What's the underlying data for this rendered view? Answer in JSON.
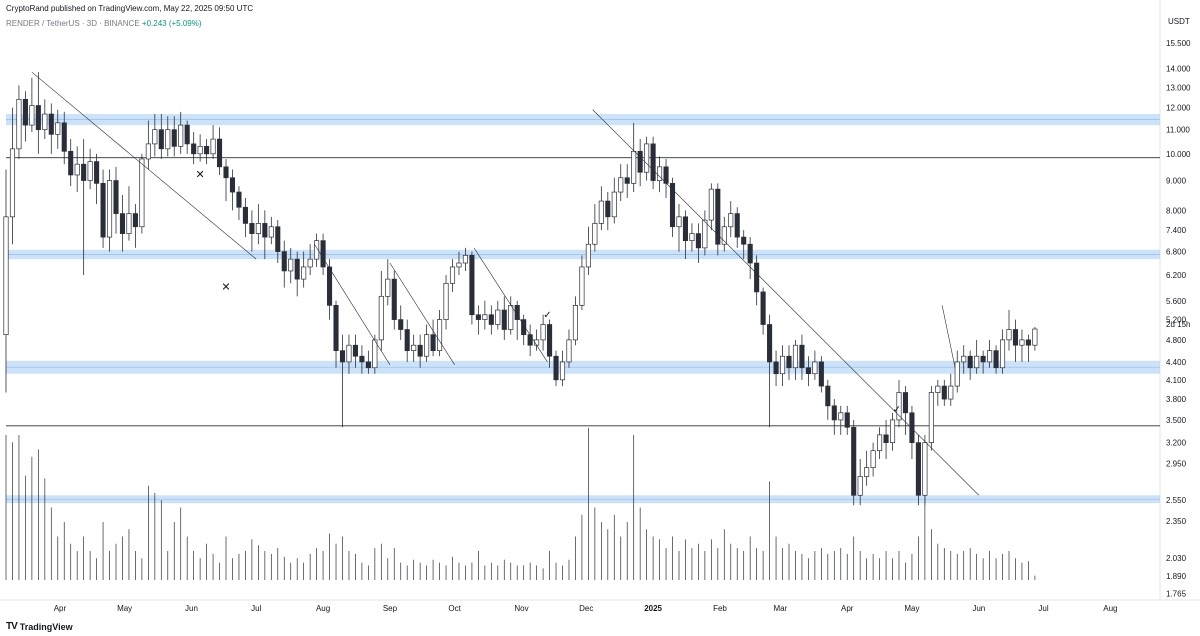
{
  "header": {
    "publisher": "CryptoRand published on TradingView.com, May 22, 2025 09:50 UTC",
    "symbol": "RENDER / TetherUS · 3D · BINANCE",
    "change": "+0.243 (+5.09%)"
  },
  "footer": {
    "brand": "TradingView",
    "logo_icon": "tradingview-logo-icon"
  },
  "colors": {
    "up": "#ffffff",
    "down": "#2a2e39",
    "zone": "#bbd8f5",
    "zone_line": "#9cc3ee",
    "line": "#2a2e39"
  },
  "chart_data": {
    "type": "candlestick",
    "scale": "log",
    "unit": "USDT",
    "countdown": "2d 15h",
    "last_price": "5.010",
    "y_ticks": [
      "15.500",
      "14.000",
      "13.000",
      "12.000",
      "11.000",
      "10.000",
      "9.000",
      "8.000",
      "7.400",
      "6.800",
      "6.200",
      "5.600",
      "5.200",
      "4.800",
      "4.400",
      "4.100",
      "3.800",
      "3.500",
      "3.200",
      "2.950",
      "2.550",
      "2.350",
      "2.030",
      "1.890",
      "1.765"
    ],
    "ylim": [
      1.72,
      16.3
    ],
    "x_labels": [
      {
        "label": "Apr",
        "date": "2024-04-01"
      },
      {
        "label": "May",
        "date": "2024-05-01"
      },
      {
        "label": "Jun",
        "date": "2024-06-01"
      },
      {
        "label": "Jul",
        "date": "2024-07-01"
      },
      {
        "label": "Aug",
        "date": "2024-08-01"
      },
      {
        "label": "Sep",
        "date": "2024-09-01"
      },
      {
        "label": "Oct",
        "date": "2024-10-01"
      },
      {
        "label": "Nov",
        "date": "2024-11-01"
      },
      {
        "label": "Dec",
        "date": "2024-12-01"
      },
      {
        "label": "2025",
        "date": "2025-01-01",
        "bold": true
      },
      {
        "label": "Feb",
        "date": "2025-02-01"
      },
      {
        "label": "Mar",
        "date": "2025-03-01"
      },
      {
        "label": "Apr",
        "date": "2025-04-01"
      },
      {
        "label": "May",
        "date": "2025-05-01"
      },
      {
        "label": "Jun",
        "date": "2025-06-01"
      },
      {
        "label": "Jul",
        "date": "2025-07-01"
      },
      {
        "label": "Aug",
        "date": "2025-08-01"
      }
    ],
    "xlim": [
      "2024-03-07",
      "2025-08-24"
    ],
    "zones": [
      {
        "low": 11.2,
        "high": 11.7
      },
      {
        "low": 6.6,
        "high": 6.85
      },
      {
        "low": 4.2,
        "high": 4.42
      },
      {
        "low": 2.52,
        "high": 2.6
      }
    ],
    "levels": [
      9.85,
      3.42
    ],
    "trendlines": [
      {
        "x1": "2024-03-19",
        "y1": 13.8,
        "x2": "2024-07-01",
        "y2": 6.6
      },
      {
        "x1": "2024-07-28",
        "y1": 7.0,
        "x2": "2024-09-01",
        "y2": 4.35
      },
      {
        "x1": "2024-09-01",
        "y1": 6.5,
        "x2": "2024-10-01",
        "y2": 4.35
      },
      {
        "x1": "2024-10-10",
        "y1": 6.9,
        "x2": "2024-11-13",
        "y2": 4.4
      },
      {
        "x1": "2024-12-04",
        "y1": 11.9,
        "x2": "2025-06-01",
        "y2": 2.6
      },
      {
        "x1": "2025-05-15",
        "y1": 5.5,
        "x2": "2025-05-21",
        "y2": 4.3
      }
    ],
    "markers": [
      {
        "date": "2024-06-05",
        "price": 9.2,
        "symbol": "✕",
        "name": "cross-marker-1"
      },
      {
        "date": "2024-06-17",
        "price": 5.9,
        "symbol": "✕",
        "name": "cross-marker-2"
      },
      {
        "date": "2024-11-13",
        "price": 5.3,
        "symbol": "✓",
        "name": "check-marker-1"
      },
      {
        "date": "2025-04-24",
        "price": 3.65,
        "symbol": "✓",
        "name": "check-marker-2"
      }
    ],
    "series_start": "2024-03-07",
    "bar_days": 3,
    "candles": [
      [
        4.9,
        7.8,
        9.4,
        3.9
      ],
      [
        7.8,
        10.2,
        12.0,
        7.0
      ],
      [
        10.2,
        12.4,
        13.1,
        9.8
      ],
      [
        12.4,
        11.2,
        12.8,
        10.5
      ],
      [
        11.2,
        12.1,
        13.5,
        10.9
      ],
      [
        12.1,
        11.0,
        13.8,
        10.0
      ],
      [
        11.0,
        11.7,
        12.4,
        10.6
      ],
      [
        11.7,
        10.8,
        12.2,
        10.0
      ],
      [
        10.8,
        11.3,
        11.9,
        10.2
      ],
      [
        11.3,
        10.1,
        11.8,
        9.6
      ],
      [
        10.1,
        9.2,
        10.6,
        8.8
      ],
      [
        9.2,
        9.6,
        10.3,
        8.6
      ],
      [
        9.6,
        9.0,
        10.6,
        6.2
      ],
      [
        9.0,
        9.7,
        10.2,
        8.7
      ],
      [
        9.7,
        8.9,
        10.0,
        8.2
      ],
      [
        8.9,
        7.2,
        9.4,
        6.9
      ],
      [
        7.2,
        9.0,
        9.4,
        6.8
      ],
      [
        9.0,
        7.9,
        9.5,
        7.3
      ],
      [
        7.9,
        7.3,
        8.5,
        6.8
      ],
      [
        7.3,
        7.9,
        8.8,
        7.1
      ],
      [
        7.9,
        7.5,
        8.2,
        6.9
      ],
      [
        7.5,
        9.8,
        10.0,
        7.3
      ],
      [
        9.8,
        10.4,
        11.4,
        9.4
      ],
      [
        10.4,
        11.0,
        11.7,
        9.9
      ],
      [
        11.0,
        10.2,
        11.7,
        9.8
      ],
      [
        10.2,
        11.0,
        11.6,
        9.9
      ],
      [
        11.0,
        10.3,
        11.6,
        9.9
      ],
      [
        10.3,
        11.2,
        11.8,
        10.0
      ],
      [
        11.2,
        10.4,
        11.4,
        10.0
      ],
      [
        10.4,
        10.0,
        10.9,
        9.6
      ],
      [
        10.0,
        10.3,
        10.8,
        9.7
      ],
      [
        10.3,
        10.0,
        10.6,
        9.6
      ],
      [
        10.0,
        10.6,
        11.2,
        9.8
      ],
      [
        10.6,
        9.5,
        11.1,
        9.2
      ],
      [
        9.5,
        9.1,
        9.8,
        8.3
      ],
      [
        9.1,
        8.6,
        9.4,
        8.0
      ],
      [
        8.6,
        8.1,
        8.8,
        7.7
      ],
      [
        8.1,
        7.6,
        8.4,
        7.2
      ],
      [
        7.6,
        7.3,
        8.0,
        6.8
      ],
      [
        7.3,
        7.6,
        8.2,
        7.0
      ],
      [
        7.6,
        7.2,
        8.0,
        6.6
      ],
      [
        7.2,
        7.5,
        7.8,
        7.0
      ],
      [
        7.5,
        6.8,
        7.7,
        6.5
      ],
      [
        6.8,
        6.3,
        7.1,
        5.9
      ],
      [
        6.3,
        6.6,
        6.9,
        6.0
      ],
      [
        6.6,
        6.1,
        6.8,
        5.7
      ],
      [
        6.1,
        6.4,
        6.8,
        5.9
      ],
      [
        6.4,
        6.6,
        7.0,
        6.2
      ],
      [
        6.6,
        7.1,
        7.3,
        6.4
      ],
      [
        7.1,
        6.4,
        7.3,
        6.2
      ],
      [
        6.4,
        5.5,
        6.6,
        5.2
      ],
      [
        5.5,
        4.6,
        5.6,
        4.3
      ],
      [
        4.6,
        4.4,
        4.9,
        3.4
      ],
      [
        4.4,
        4.7,
        4.9,
        4.2
      ],
      [
        4.7,
        4.5,
        4.9,
        4.3
      ],
      [
        4.5,
        4.4,
        4.7,
        4.2
      ],
      [
        4.4,
        4.3,
        4.6,
        4.2
      ],
      [
        4.3,
        4.8,
        4.9,
        4.2
      ],
      [
        4.8,
        5.7,
        6.3,
        4.6
      ],
      [
        5.7,
        6.1,
        6.6,
        5.5
      ],
      [
        6.1,
        5.2,
        6.3,
        5.0
      ],
      [
        5.2,
        5.0,
        5.5,
        4.8
      ],
      [
        5.0,
        4.6,
        5.2,
        4.4
      ],
      [
        4.6,
        4.7,
        4.9,
        4.4
      ],
      [
        4.7,
        4.5,
        4.9,
        4.3
      ],
      [
        4.5,
        4.9,
        5.1,
        4.4
      ],
      [
        4.9,
        4.6,
        5.2,
        4.5
      ],
      [
        4.6,
        5.2,
        5.4,
        4.5
      ],
      [
        5.2,
        6.0,
        6.2,
        5.0
      ],
      [
        6.0,
        6.4,
        6.6,
        5.8
      ],
      [
        6.4,
        6.5,
        6.8,
        6.2
      ],
      [
        6.5,
        6.7,
        6.9,
        6.3
      ],
      [
        6.7,
        5.3,
        6.8,
        5.1
      ],
      [
        5.3,
        5.2,
        5.5,
        4.9
      ],
      [
        5.2,
        5.3,
        5.6,
        5.0
      ],
      [
        5.3,
        5.1,
        5.5,
        4.9
      ],
      [
        5.1,
        5.4,
        5.6,
        5.0
      ],
      [
        5.4,
        5.0,
        5.7,
        4.8
      ],
      [
        5.0,
        5.5,
        5.7,
        4.9
      ],
      [
        5.5,
        5.2,
        5.6,
        4.8
      ],
      [
        5.2,
        4.9,
        5.3,
        4.7
      ],
      [
        4.9,
        4.7,
        5.1,
        4.5
      ],
      [
        4.7,
        4.8,
        5.0,
        4.6
      ],
      [
        4.8,
        5.1,
        5.3,
        4.6
      ],
      [
        5.1,
        4.5,
        5.2,
        4.3
      ],
      [
        4.5,
        4.1,
        4.6,
        4.0
      ],
      [
        4.1,
        4.4,
        4.6,
        4.0
      ],
      [
        4.4,
        4.8,
        5.0,
        4.3
      ],
      [
        4.8,
        5.5,
        5.7,
        4.7
      ],
      [
        5.5,
        6.4,
        6.7,
        5.4
      ],
      [
        6.4,
        7.0,
        7.5,
        6.2
      ],
      [
        7.0,
        7.6,
        8.2,
        6.8
      ],
      [
        7.6,
        8.3,
        8.8,
        7.4
      ],
      [
        8.3,
        7.8,
        8.6,
        7.4
      ],
      [
        7.8,
        8.6,
        9.1,
        7.6
      ],
      [
        8.6,
        9.1,
        9.6,
        8.3
      ],
      [
        9.1,
        8.9,
        9.6,
        8.4
      ],
      [
        8.9,
        10.1,
        11.3,
        8.6
      ],
      [
        10.1,
        9.3,
        10.6,
        8.8
      ],
      [
        9.3,
        10.4,
        10.7,
        9.0
      ],
      [
        10.4,
        9.0,
        10.7,
        8.7
      ],
      [
        9.0,
        9.5,
        9.9,
        8.6
      ],
      [
        9.5,
        8.9,
        9.8,
        8.4
      ],
      [
        8.9,
        7.5,
        9.1,
        7.2
      ],
      [
        7.5,
        7.8,
        8.2,
        6.8
      ],
      [
        7.8,
        7.1,
        8.0,
        6.6
      ],
      [
        7.1,
        7.3,
        7.6,
        6.8
      ],
      [
        7.3,
        6.9,
        7.6,
        6.5
      ],
      [
        6.9,
        7.7,
        8.0,
        6.7
      ],
      [
        7.7,
        8.7,
        8.9,
        7.4
      ],
      [
        8.7,
        7.0,
        8.9,
        6.7
      ],
      [
        7.0,
        7.5,
        7.8,
        6.8
      ],
      [
        7.5,
        7.9,
        8.3,
        7.2
      ],
      [
        7.9,
        7.2,
        8.1,
        6.9
      ],
      [
        7.2,
        7.0,
        7.4,
        6.6
      ],
      [
        7.0,
        6.5,
        7.2,
        6.1
      ],
      [
        6.5,
        5.8,
        6.7,
        5.5
      ],
      [
        5.8,
        5.1,
        5.9,
        4.9
      ],
      [
        5.1,
        4.4,
        5.3,
        3.4
      ],
      [
        4.4,
        4.2,
        4.6,
        4.0
      ],
      [
        4.2,
        4.5,
        4.7,
        4.0
      ],
      [
        4.5,
        4.3,
        4.7,
        4.1
      ],
      [
        4.3,
        4.7,
        4.8,
        4.1
      ],
      [
        4.7,
        4.3,
        4.9,
        4.1
      ],
      [
        4.3,
        4.2,
        4.5,
        4.0
      ],
      [
        4.2,
        4.4,
        4.6,
        4.1
      ],
      [
        4.4,
        4.0,
        4.5,
        3.9
      ],
      [
        4.0,
        3.7,
        4.1,
        3.5
      ],
      [
        3.7,
        3.5,
        3.8,
        3.3
      ],
      [
        3.5,
        3.6,
        3.7,
        3.3
      ],
      [
        3.6,
        3.4,
        3.7,
        3.3
      ],
      [
        3.4,
        2.6,
        3.5,
        2.5
      ],
      [
        2.6,
        2.8,
        3.0,
        2.5
      ],
      [
        2.8,
        2.9,
        3.1,
        2.7
      ],
      [
        2.9,
        3.1,
        3.2,
        2.8
      ],
      [
        3.1,
        3.3,
        3.4,
        3.0
      ],
      [
        3.3,
        3.2,
        3.5,
        3.0
      ],
      [
        3.2,
        3.5,
        3.6,
        3.1
      ],
      [
        3.5,
        3.9,
        4.1,
        3.4
      ],
      [
        3.9,
        3.6,
        4.0,
        3.3
      ],
      [
        3.6,
        3.2,
        3.7,
        3.0
      ],
      [
        3.2,
        2.6,
        3.3,
        2.5
      ],
      [
        2.6,
        3.2,
        3.3,
        2.5
      ],
      [
        3.2,
        3.9,
        4.0,
        3.1
      ],
      [
        3.9,
        4.0,
        4.1,
        3.7
      ],
      [
        4.0,
        3.8,
        4.1,
        3.7
      ],
      [
        3.8,
        4.0,
        4.2,
        3.7
      ],
      [
        4.0,
        4.4,
        4.6,
        3.9
      ],
      [
        4.4,
        4.5,
        4.7,
        4.2
      ],
      [
        4.5,
        4.3,
        4.6,
        4.1
      ],
      [
        4.3,
        4.5,
        4.8,
        4.2
      ],
      [
        4.5,
        4.4,
        4.6,
        4.2
      ],
      [
        4.4,
        4.6,
        4.8,
        4.3
      ],
      [
        4.6,
        4.3,
        4.7,
        4.2
      ],
      [
        4.3,
        4.8,
        5.0,
        4.2
      ],
      [
        4.8,
        5.0,
        5.4,
        4.6
      ],
      [
        5.0,
        4.7,
        5.2,
        4.4
      ],
      [
        4.7,
        4.8,
        5.0,
        4.4
      ],
      [
        4.8,
        4.7,
        4.9,
        4.4
      ],
      [
        4.7,
        5.01,
        5.05,
        4.6
      ]
    ],
    "volumes": [
      1.0,
      0.95,
      1.0,
      0.72,
      0.85,
      0.9,
      0.7,
      0.5,
      0.3,
      0.4,
      0.25,
      0.2,
      0.3,
      0.2,
      0.15,
      0.4,
      0.2,
      0.25,
      0.3,
      0.35,
      0.2,
      0.15,
      0.65,
      0.6,
      0.55,
      0.2,
      0.4,
      0.5,
      0.3,
      0.2,
      0.15,
      0.25,
      0.18,
      0.12,
      0.3,
      0.15,
      0.18,
      0.2,
      0.28,
      0.24,
      0.2,
      0.18,
      0.22,
      0.16,
      0.12,
      0.15,
      0.12,
      0.18,
      0.22,
      0.2,
      0.32,
      0.25,
      0.3,
      0.2,
      0.18,
      0.12,
      0.1,
      0.22,
      0.25,
      0.15,
      0.22,
      0.12,
      0.1,
      0.14,
      0.12,
      0.1,
      0.14,
      0.12,
      0.1,
      0.16,
      0.12,
      0.1,
      0.12,
      0.2,
      0.1,
      0.12,
      0.1,
      0.14,
      0.12,
      0.1,
      0.1,
      0.12,
      0.1,
      0.08,
      0.2,
      0.12,
      0.1,
      0.14,
      0.3,
      0.45,
      1.05,
      0.5,
      0.4,
      0.35,
      0.45,
      0.3,
      0.4,
      1.0,
      0.5,
      0.35,
      0.3,
      0.28,
      0.22,
      0.3,
      0.2,
      0.28,
      0.22,
      0.25,
      0.2,
      0.28,
      0.22,
      0.35,
      0.25,
      0.22,
      0.2,
      0.3,
      0.22,
      0.2,
      0.68,
      0.3,
      0.22,
      0.25,
      0.2,
      0.18,
      0.15,
      0.2,
      0.22,
      0.18,
      0.2,
      0.22,
      0.18,
      0.3,
      0.2,
      0.15,
      0.18,
      0.15,
      0.2,
      0.15,
      0.2,
      0.12,
      0.18,
      0.3,
      0.65,
      0.35,
      0.25,
      0.22,
      0.2,
      0.18,
      0.2,
      0.22,
      0.18,
      0.15,
      0.2,
      0.15,
      0.18,
      0.2,
      0.15,
      0.12,
      0.13,
      0.03
    ]
  }
}
